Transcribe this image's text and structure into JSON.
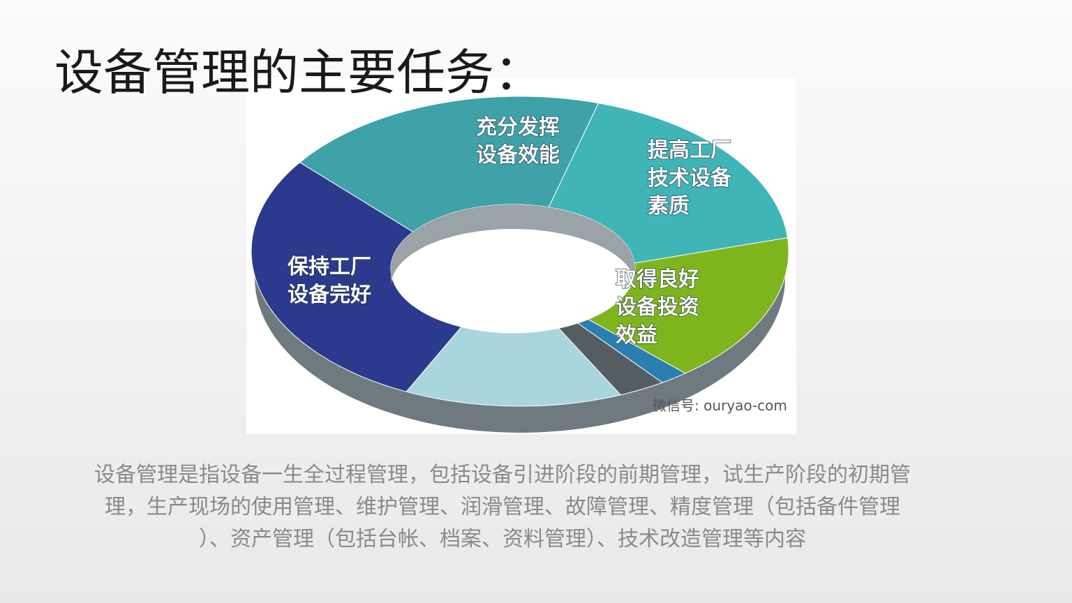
{
  "title": "设备管理的主要任务：",
  "diagram": {
    "segments": [
      {
        "lines": [
          "保持工厂",
          "设备完好"
        ]
      },
      {
        "lines": [
          "充分发挥",
          "设备效能"
        ]
      },
      {
        "lines": [
          "提高工厂",
          "技术设备",
          "素质"
        ]
      },
      {
        "lines": [
          "取得良好",
          "设备投资",
          "效益"
        ]
      }
    ],
    "watermark": "微信号: ouryao-com"
  },
  "description": {
    "lines": [
      "设备管理是指设备一生全过程管理，包括设备引进阶段的前期管理，试生产阶段的初期管",
      "理，生产现场的使用管理、维护管理、润滑管理、故障管理、精度管理（包括备件管理",
      "）、资产管理（包括台帐、档案、资料管理）、技术改造管理等内容"
    ]
  }
}
